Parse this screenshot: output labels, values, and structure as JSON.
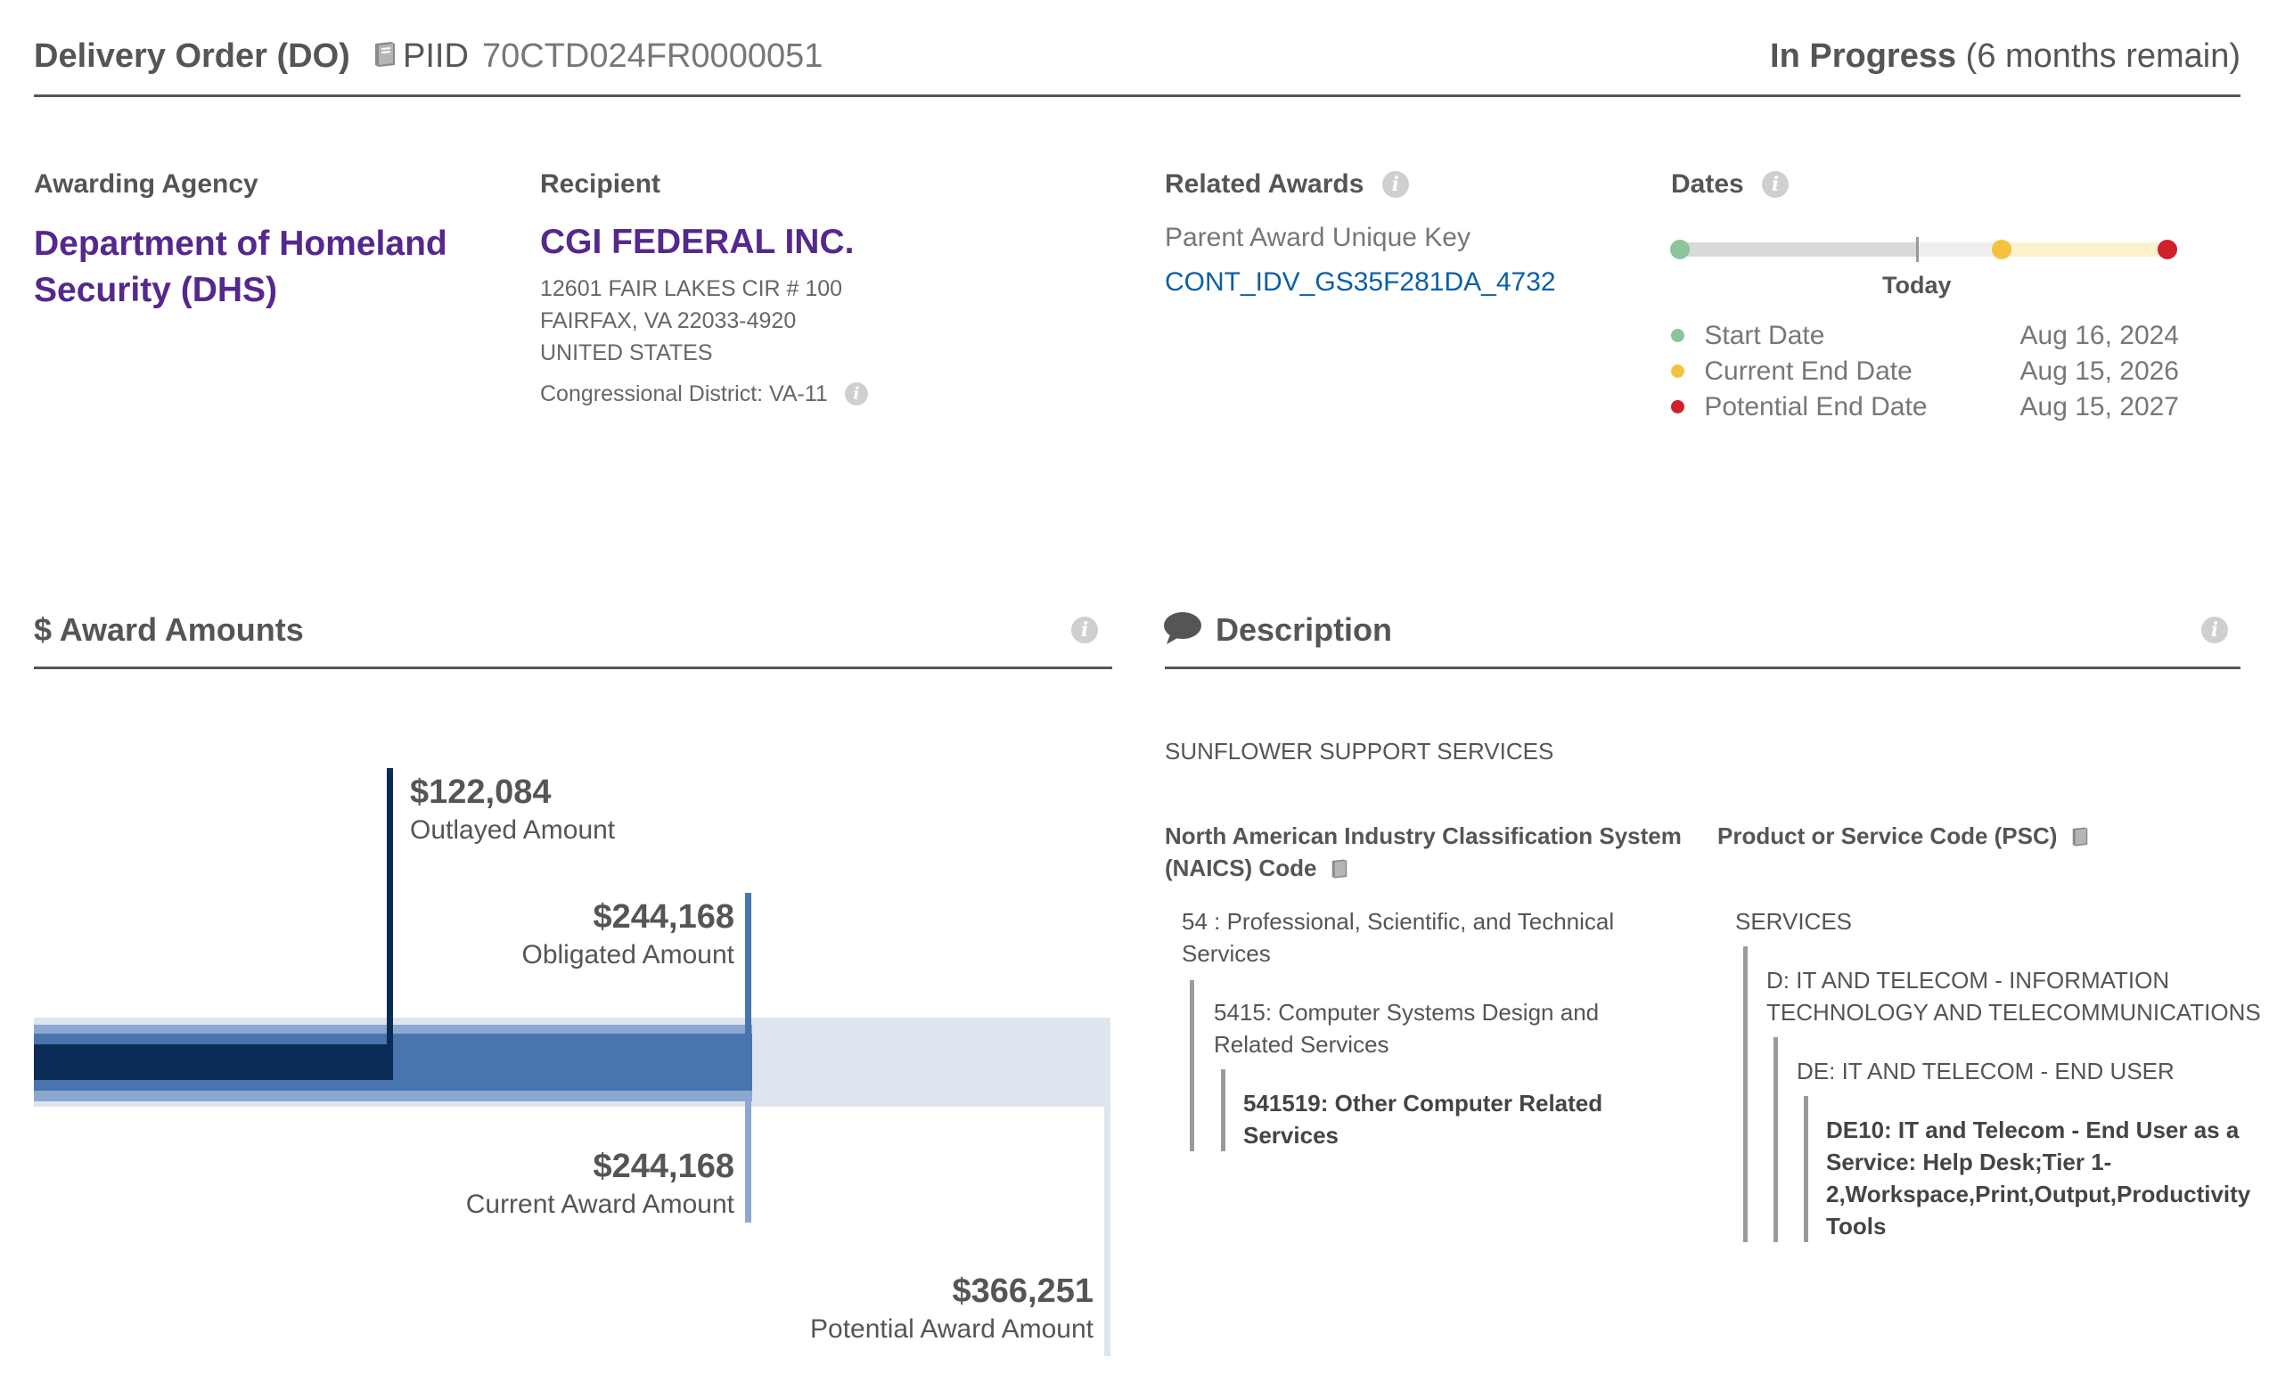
{
  "header": {
    "award_type": "Delivery Order (DO)",
    "piid_label": "PIID",
    "piid": "70CTD024FR0000051",
    "status": "In Progress",
    "status_detail": "(6 months remain)"
  },
  "agency": {
    "label": "Awarding Agency",
    "name": "Department of Homeland Security (DHS)"
  },
  "recipient": {
    "label": "Recipient",
    "name": "CGI FEDERAL INC.",
    "address_line1": "12601 FAIR LAKES CIR # 100",
    "address_line2": "FAIRFAX, VA 22033-4920",
    "address_line3": "UNITED STATES",
    "district": "Congressional District: VA-11"
  },
  "related": {
    "label": "Related Awards",
    "parent_label": "Parent Award Unique Key",
    "parent_key": "CONT_IDV_GS35F281DA_4732"
  },
  "dates": {
    "label": "Dates",
    "today_label": "Today",
    "rows": [
      {
        "label": "Start Date",
        "value": "Aug 16, 2024",
        "color": "#8dc49a"
      },
      {
        "label": "Current End Date",
        "value": "Aug 15, 2026",
        "color": "#f5c23e"
      },
      {
        "label": "Potential End Date",
        "value": "Aug 15, 2027",
        "color": "#d0202a"
      }
    ]
  },
  "award_amounts": {
    "title": "$ Award Amounts",
    "outlayed": {
      "value": "$122,084",
      "label": "Outlayed Amount"
    },
    "obligated": {
      "value": "$244,168",
      "label": "Obligated Amount"
    },
    "current": {
      "value": "$244,168",
      "label": "Current Award Amount"
    },
    "potential": {
      "value": "$366,251",
      "label": "Potential Award Amount"
    },
    "colors": {
      "outlayed": "#0b2b57",
      "obligated": "#4a74ad",
      "current": "#8ba8d1",
      "potential": "#dfe5ef"
    }
  },
  "description": {
    "title": "Description",
    "text": "SUNFLOWER SUPPORT SERVICES",
    "naics": {
      "label_line1": "North American Industry Classification System",
      "label_line2": "(NAICS)  Code",
      "level1_line1": "54 : Professional, Scientific, and Technical",
      "level1_line2": "Services",
      "level2_line1": "5415: Computer Systems Design and",
      "level2_line2": "Related Services",
      "level3_line1": "541519: Other Computer Related",
      "level3_line2": "Services"
    },
    "psc": {
      "label": "Product or Service Code  (PSC)",
      "level1": "SERVICES",
      "level2_line1": "D: IT AND TELECOM - INFORMATION",
      "level2_line2": "TECHNOLOGY AND TELECOMMUNICATIONS",
      "level3": "DE: IT AND TELECOM - END USER",
      "level4_line1": "DE10: IT and Telecom - End User as a",
      "level4_line2": "Service: Help Desk;Tier 1-",
      "level4_line3": "2,Workspace,Print,Output,Productivity",
      "level4_line4": "Tools"
    }
  }
}
